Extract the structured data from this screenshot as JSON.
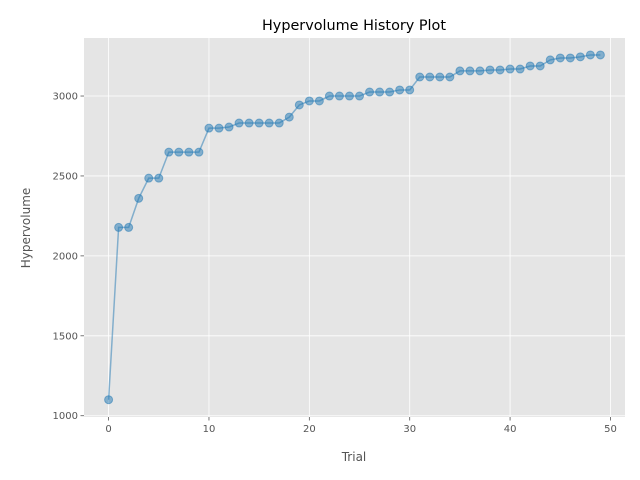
{
  "chart_data": {
    "type": "line",
    "title": "Hypervolume History Plot",
    "x_label": "Trial",
    "y_label": "Hypervolume",
    "x": [
      0,
      1,
      2,
      3,
      4,
      5,
      6,
      7,
      8,
      9,
      10,
      11,
      12,
      13,
      14,
      15,
      16,
      17,
      18,
      19,
      20,
      21,
      22,
      23,
      24,
      25,
      26,
      27,
      28,
      29,
      30,
      31,
      32,
      33,
      34,
      35,
      36,
      37,
      38,
      39,
      40,
      41,
      42,
      43,
      44,
      45,
      46,
      47,
      48,
      49
    ],
    "values": [
      1100,
      2178,
      2178,
      2360,
      2486,
      2486,
      2649,
      2649,
      2649,
      2649,
      2799,
      2799,
      2806,
      2831,
      2831,
      2831,
      2831,
      2831,
      2868,
      2944,
      2969,
      2969,
      3000,
      3000,
      3000,
      3000,
      3025,
      3025,
      3025,
      3038,
      3038,
      3119,
      3119,
      3119,
      3119,
      3157,
      3157,
      3157,
      3163,
      3163,
      3169,
      3169,
      3188,
      3188,
      3226,
      3238,
      3238,
      3245,
      3257,
      3257
    ],
    "color": "#1f77b4",
    "xlim": [
      -2.45,
      51.45
    ],
    "xticks": [
      0,
      10,
      20,
      30,
      40,
      50
    ],
    "ylim": [
      992,
      3363
    ],
    "yticks": [
      1000,
      1500,
      2000,
      2500,
      3000
    ],
    "grid": true
  }
}
